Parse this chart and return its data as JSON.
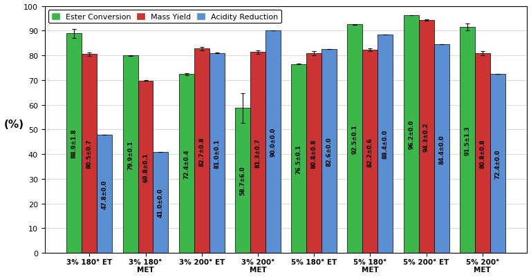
{
  "categories": [
    "3% 180° ET",
    "3% 180°\nMET",
    "3% 200° ET",
    "3% 200°\nMET",
    "5% 180° ET",
    "5% 180°\nMET",
    "5% 200° ET",
    "5% 200°\nMET"
  ],
  "ester_conversion": [
    88.9,
    79.9,
    72.4,
    58.7,
    76.5,
    92.5,
    96.2,
    91.5
  ],
  "ester_errors": [
    1.8,
    0.1,
    0.4,
    6.0,
    0.1,
    0.1,
    0.0,
    1.3
  ],
  "mass_yield": [
    80.5,
    69.8,
    82.7,
    81.3,
    80.8,
    82.2,
    94.3,
    80.8
  ],
  "mass_errors": [
    0.7,
    0.1,
    0.8,
    0.7,
    0.8,
    0.6,
    0.2,
    0.8
  ],
  "acidity_reduction": [
    47.8,
    41.0,
    81.0,
    90.0,
    82.6,
    88.4,
    84.4,
    72.4
  ],
  "acidity_errors": [
    0.0,
    0.0,
    0.1,
    0.0,
    0.0,
    0.0,
    0.0,
    0.0
  ],
  "bar_colors": [
    "#3cb84a",
    "#cc3333",
    "#5b8fd4"
  ],
  "ylabel": "(%)",
  "ylim": [
    0,
    100
  ],
  "yticks": [
    0,
    10,
    20,
    30,
    40,
    50,
    60,
    70,
    80,
    90,
    100
  ],
  "legend_labels": [
    "Ester Conversion",
    "Mass Yield",
    "Acidity Reduction"
  ],
  "bar_width": 0.27,
  "figsize": [
    7.68,
    4.02
  ],
  "dpi": 100,
  "label_fontsize": 6.0
}
